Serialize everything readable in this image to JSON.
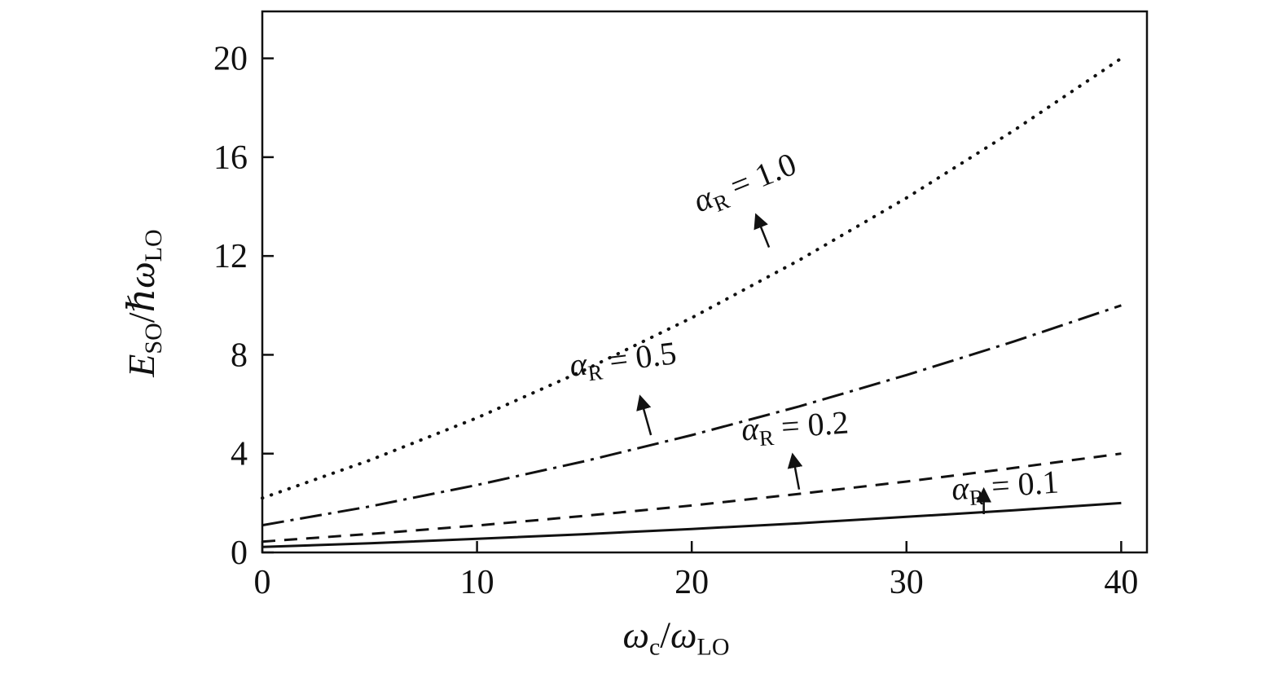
{
  "figure": {
    "background": "#ffffff",
    "line_color": "#111111"
  },
  "chart_data": {
    "type": "line",
    "title": "",
    "grid": false,
    "legend": "inline-annotations",
    "xlabel_parts": {
      "sym1": "ω",
      "sub1": "c",
      "slash": "/",
      "sym2": "ω",
      "sub2": "LO"
    },
    "ylabel_parts": {
      "sym1": "E",
      "sub1": "SO",
      "slash": "/",
      "hbar": "ℏ",
      "sym2": "ω",
      "sub2": "LO"
    },
    "xlim": [
      0,
      41.2
    ],
    "ylim": [
      0,
      21.9
    ],
    "xticks": [
      0,
      10,
      20,
      30,
      40
    ],
    "yticks": [
      0,
      4,
      8,
      12,
      16,
      20
    ],
    "x": [
      0,
      5,
      10,
      15,
      20,
      25,
      30,
      35,
      40
    ],
    "series": [
      {
        "name": "alpha_R = 0.1",
        "line_style": "solid",
        "values": [
          0.22,
          0.37,
          0.55,
          0.74,
          0.95,
          1.18,
          1.44,
          1.71,
          2.0
        ],
        "label_parts": {
          "sym": "α",
          "sub": "R",
          "rest": " = 0.1"
        },
        "annotation": {
          "label_x": 34.6,
          "label_y": 2.65,
          "rotation": -4,
          "arrow_tail": [
            33.6,
            1.55
          ],
          "arrow_head": [
            33.6,
            2.55
          ]
        }
      },
      {
        "name": "alpha_R = 0.2",
        "line_style": "dashed",
        "values": [
          0.44,
          0.75,
          1.09,
          1.48,
          1.9,
          2.37,
          2.87,
          3.42,
          4.0
        ],
        "label_parts": {
          "sym": "α",
          "sub": "R",
          "rest": " = 0.2"
        },
        "annotation": {
          "label_x": 24.8,
          "label_y": 5.05,
          "rotation": -4,
          "arrow_tail": [
            25.0,
            2.55
          ],
          "arrow_head": [
            24.7,
            3.95
          ]
        }
      },
      {
        "name": "alpha_R = 0.5",
        "line_style": "dashdot",
        "values": [
          1.1,
          1.86,
          2.73,
          3.69,
          4.75,
          5.91,
          7.18,
          8.54,
          10.0
        ],
        "label_parts": {
          "sym": "α",
          "sub": "R",
          "rest": " = 0.5"
        },
        "annotation": {
          "label_x": 16.8,
          "label_y": 7.75,
          "rotation": -7,
          "arrow_tail": [
            18.1,
            4.75
          ],
          "arrow_head": [
            17.6,
            6.3
          ]
        }
      },
      {
        "name": "alpha_R = 1.0",
        "line_style": "dotted",
        "values": [
          2.2,
          3.73,
          5.45,
          7.38,
          9.5,
          11.83,
          14.35,
          17.08,
          20.0
        ],
        "label_parts": {
          "sym": "α",
          "sub": "R",
          "rest": " = 1.0"
        },
        "annotation": {
          "label_x": 22.5,
          "label_y": 14.9,
          "rotation": -22,
          "arrow_tail": [
            23.6,
            12.35
          ],
          "arrow_head": [
            23.0,
            13.65
          ]
        }
      }
    ]
  }
}
